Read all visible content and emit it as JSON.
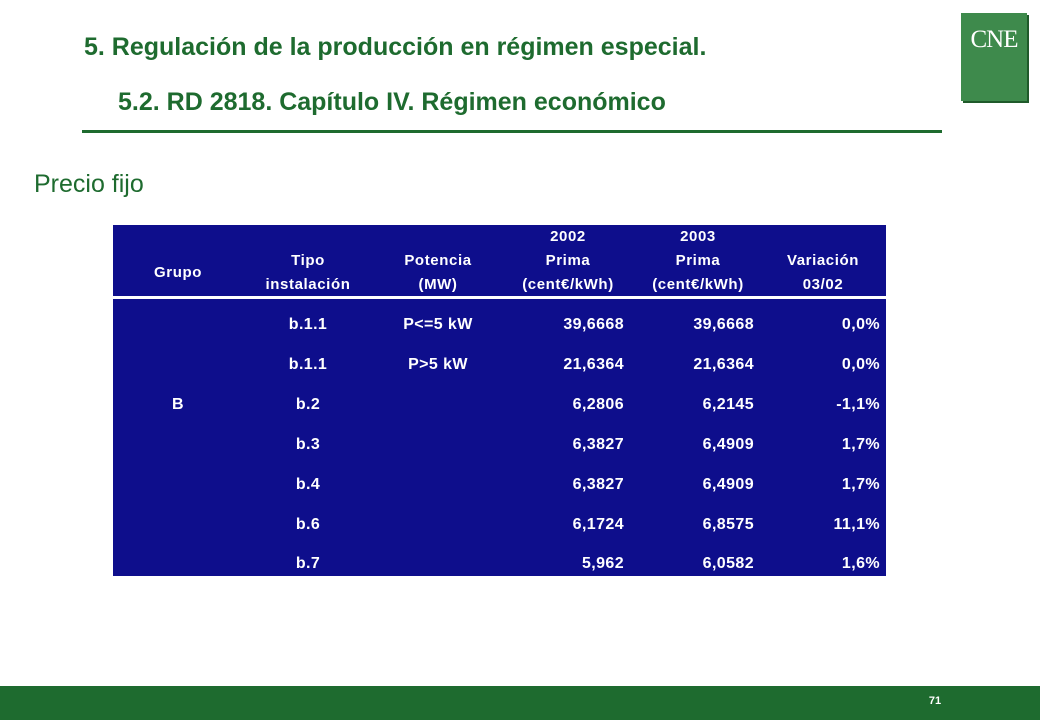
{
  "header": {
    "title": "5. Regulación de la producción en régimen especial.",
    "subtitle": "5.2. RD 2818. Capítulo IV. Régimen económico"
  },
  "logo": {
    "text": "CNE"
  },
  "section_title": "Precio fijo",
  "table": {
    "headers": {
      "grupo": "Grupo",
      "tipo": [
        "Tipo",
        "instalación"
      ],
      "potencia": [
        "Potencia",
        "(MW)"
      ],
      "y2002": [
        "2002",
        "Prima",
        "(cent€/kWh)"
      ],
      "y2003": [
        "2003",
        "Prima",
        "(cent€/kWh)"
      ],
      "variacion": [
        "Variación",
        "03/02"
      ]
    },
    "group_label": "B",
    "rows": [
      {
        "tipo": "b.1.1",
        "potencia": "P<=5 kW",
        "prima2002": "39,6668",
        "prima2003": "39,6668",
        "variacion": "0,0%"
      },
      {
        "tipo": "b.1.1",
        "potencia": "P>5 kW",
        "prima2002": "21,6364",
        "prima2003": "21,6364",
        "variacion": "0,0%"
      },
      {
        "tipo": "b.2",
        "potencia": "",
        "prima2002": "6,2806",
        "prima2003": "6,2145",
        "variacion": "-1,1%"
      },
      {
        "tipo": "b.3",
        "potencia": "",
        "prima2002": "6,3827",
        "prima2003": "6,4909",
        "variacion": "1,7%"
      },
      {
        "tipo": "b.4",
        "potencia": "",
        "prima2002": "6,3827",
        "prima2003": "6,4909",
        "variacion": "1,7%"
      },
      {
        "tipo": "b.6",
        "potencia": "",
        "prima2002": "6,1724",
        "prima2003": "6,8575",
        "variacion": "11,1%"
      },
      {
        "tipo": "b.7",
        "potencia": "",
        "prima2002": "5,962",
        "prima2003": "6,0582",
        "variacion": "1,6%"
      }
    ]
  },
  "footer": {
    "page_number": "71"
  }
}
